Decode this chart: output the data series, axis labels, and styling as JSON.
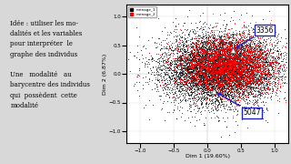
{
  "title": "",
  "xlabel": "Dim 1 (19.60%)",
  "ylabel": "Dim 2 (6.87%)",
  "xlim": [
    -1.2,
    1.2
  ],
  "ylim": [
    -1.2,
    1.2
  ],
  "xticks": [
    -1.0,
    -0.5,
    0.0,
    0.5,
    1.0
  ],
  "yticks": [
    -1.0,
    -0.5,
    0.0,
    0.5,
    1.0
  ],
  "n_black": 8000,
  "n_red": 5000,
  "seed": 42,
  "point3356": [
    0.38,
    0.42
  ],
  "point5047": [
    0.1,
    -0.3
  ],
  "legend_labels": [
    "ménage_1",
    "ménage_2"
  ],
  "legend_colors": [
    "black",
    "red"
  ],
  "text_lines": [
    "Idée : utiliser les mo-",
    "dalités et les variables",
    "pour interpréter  le",
    "graphe des individus",
    "",
    "Une   modalité   au",
    "barycentre des individus",
    "qui  possèdent  cette",
    "modalité"
  ],
  "annotation_box_color": "#2222bb",
  "bg_color": "#d8d8d8"
}
